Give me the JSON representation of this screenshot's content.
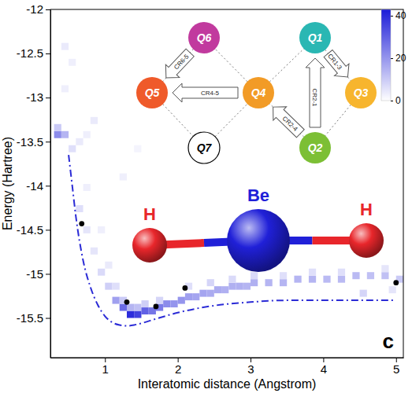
{
  "chart_data": {
    "type": "heatmap",
    "x_label": "Interatomic distance (Angstrom)",
    "y_label": "Energy (Hartree)",
    "xlim": [
      0.25,
      5.1
    ],
    "ylim": [
      -15.95,
      -12
    ],
    "xticks": [
      1,
      2,
      3,
      4,
      5
    ],
    "yticks": [
      -15.5,
      -15,
      -14.5,
      -14,
      -13.5,
      -13,
      -12.5,
      -12
    ],
    "grid": false,
    "panel_label": "c",
    "heatmap": {
      "cell_size": [
        0.1,
        0.08
      ],
      "cells": [
        [
          0.35,
          -13.42,
          22
        ],
        [
          0.35,
          -13.34,
          10
        ],
        [
          0.45,
          -13.42,
          14
        ],
        [
          0.45,
          -12.42,
          4
        ],
        [
          0.55,
          -13.58,
          6
        ],
        [
          0.45,
          -12.9,
          3
        ],
        [
          0.55,
          -12.6,
          3
        ],
        [
          0.65,
          -13.5,
          4
        ],
        [
          0.75,
          -13.42,
          3
        ],
        [
          0.85,
          -13.26,
          4
        ],
        [
          0.75,
          -14.02,
          3
        ],
        [
          0.65,
          -14.26,
          6
        ],
        [
          0.75,
          -14.5,
          5
        ],
        [
          0.85,
          -14.74,
          5
        ],
        [
          0.95,
          -14.98,
          7
        ],
        [
          0.95,
          -14.5,
          3
        ],
        [
          1.05,
          -15.14,
          9
        ],
        [
          1.05,
          -14.9,
          4
        ],
        [
          1.15,
          -15.3,
          18
        ],
        [
          1.15,
          -15.14,
          6
        ],
        [
          1.25,
          -15.38,
          28
        ],
        [
          1.25,
          -15.3,
          10
        ],
        [
          1.35,
          -15.46,
          40
        ],
        [
          1.35,
          -15.38,
          14
        ],
        [
          1.45,
          -15.46,
          36
        ],
        [
          1.45,
          -15.38,
          12
        ],
        [
          1.55,
          -15.42,
          30
        ],
        [
          1.55,
          -15.34,
          9
        ],
        [
          1.65,
          -15.42,
          26
        ],
        [
          1.75,
          -15.38,
          25
        ],
        [
          1.75,
          -15.3,
          8
        ],
        [
          1.85,
          -15.34,
          22
        ],
        [
          1.95,
          -15.34,
          20
        ],
        [
          2.05,
          -15.3,
          20
        ],
        [
          2.15,
          -15.26,
          18
        ],
        [
          2.15,
          -15.14,
          6
        ],
        [
          2.25,
          -15.26,
          17
        ],
        [
          2.35,
          -15.22,
          17
        ],
        [
          2.45,
          -15.22,
          16
        ],
        [
          2.45,
          -15.1,
          8
        ],
        [
          2.55,
          -15.18,
          16
        ],
        [
          2.65,
          -15.18,
          15
        ],
        [
          2.75,
          -15.14,
          15
        ],
        [
          2.75,
          -15.06,
          7
        ],
        [
          2.85,
          -15.14,
          15
        ],
        [
          2.95,
          -15.14,
          14
        ],
        [
          3.05,
          -15.1,
          15
        ],
        [
          3.05,
          -15.02,
          7
        ],
        [
          3.25,
          -15.1,
          14
        ],
        [
          3.45,
          -15.1,
          14
        ],
        [
          3.45,
          -15.02,
          6
        ],
        [
          3.65,
          -15.06,
          14
        ],
        [
          3.85,
          -15.06,
          14
        ],
        [
          3.85,
          -14.98,
          6
        ],
        [
          4.05,
          -15.06,
          13
        ],
        [
          4.25,
          -15.06,
          13
        ],
        [
          4.25,
          -14.98,
          6
        ],
        [
          4.45,
          -15.02,
          13
        ],
        [
          4.55,
          -15.22,
          8
        ],
        [
          4.65,
          -15.02,
          12
        ],
        [
          4.85,
          -15.02,
          12
        ],
        [
          4.85,
          -14.94,
          5
        ],
        [
          4.95,
          -15.18,
          5
        ],
        [
          5.05,
          -15.06,
          10
        ],
        [
          1.25,
          -13.9,
          3
        ],
        [
          1.45,
          -13.58,
          2
        ]
      ]
    },
    "colorbar": {
      "range": [
        0,
        43
      ],
      "ticks": [
        0,
        20,
        40
      ]
    },
    "series": [
      {
        "type": "line",
        "color": "#2b2bd6",
        "line_style": "dashdot",
        "x": [
          0.5,
          0.55,
          0.6,
          0.7,
          0.8,
          0.9,
          1.0,
          1.1,
          1.2,
          1.3,
          1.4,
          1.5,
          1.7,
          2.0,
          2.5,
          3.0,
          3.5,
          4.0,
          5.0
        ],
        "values": [
          -13.65,
          -14.0,
          -14.35,
          -14.85,
          -15.15,
          -15.35,
          -15.48,
          -15.55,
          -15.58,
          -15.59,
          -15.58,
          -15.56,
          -15.51,
          -15.44,
          -15.36,
          -15.32,
          -15.3,
          -15.3,
          -15.3
        ]
      },
      {
        "type": "scatter",
        "color": "#000000",
        "marker": "circle",
        "x": [
          0.68,
          1.3,
          1.7,
          2.1,
          5.0
        ],
        "values": [
          -14.43,
          -15.32,
          -15.37,
          -15.16,
          -15.1
        ]
      }
    ]
  },
  "diagram": {
    "nodes": [
      {
        "label": "Q1",
        "color": "#2ab7b3"
      },
      {
        "label": "Q2",
        "color": "#7cbf35"
      },
      {
        "label": "Q3",
        "color": "#f7b52e"
      },
      {
        "label": "Q4",
        "color": "#f29b26"
      },
      {
        "label": "Q5",
        "color": "#ef5a2a"
      },
      {
        "label": "Q6",
        "color": "#c13a9e"
      },
      {
        "label": "Q7",
        "color": "#ffffff"
      }
    ],
    "edges": [
      {
        "label": "CR6-5",
        "from": 5,
        "to": 4
      },
      {
        "label": "CR1-3",
        "from": 0,
        "to": 2
      },
      {
        "label": "CR4-5",
        "from": 3,
        "to": 4
      },
      {
        "label": "CR2-1",
        "from": 1,
        "to": 0
      },
      {
        "label": "CR2-4",
        "from": 1,
        "to": 3
      }
    ]
  },
  "molecule": {
    "atoms": [
      {
        "label": "H",
        "color": "#e8262b"
      },
      {
        "label": "Be",
        "color": "#2020d8"
      },
      {
        "label": "H",
        "color": "#e8262b"
      }
    ]
  }
}
